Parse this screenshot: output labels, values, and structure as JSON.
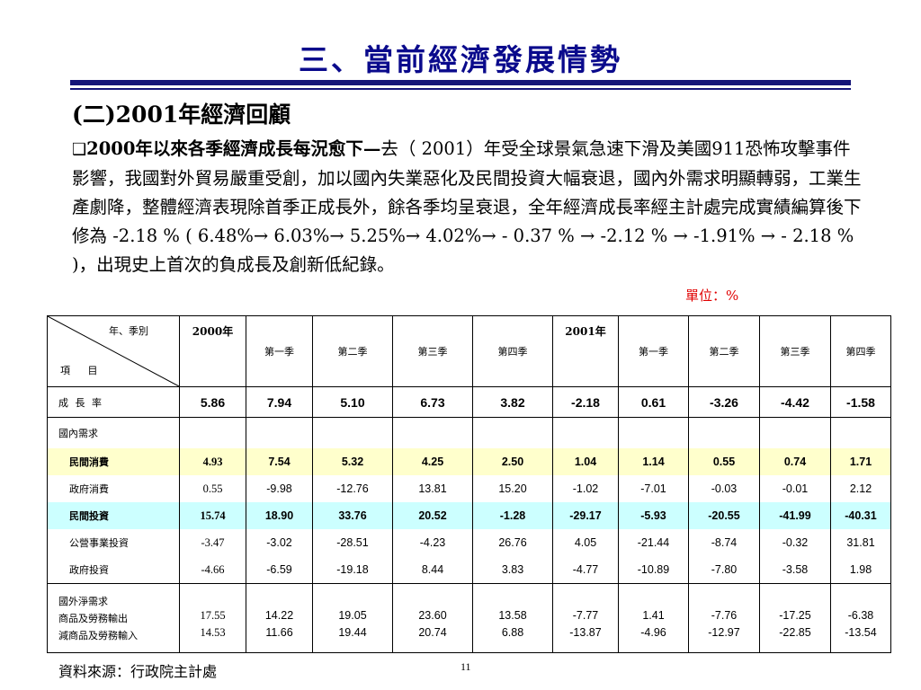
{
  "title": "三、當前經濟發展情勢",
  "subtitle": "(二)2001年經濟回顧",
  "paragraph": {
    "checkbox": "❑",
    "lead": "2000年以來各季經濟成長每況愈下—",
    "body": "去（ 2001）年受全球景氣急速下滑及美國911恐怖攻擊事件影響，我國對外貿易嚴重受創，加以國內失業惡化及民間投資大幅衰退，國內外需求明顯轉弱，工業生產劇降，整體經濟表現除首季正成長外，餘各季均呈衰退，全年經濟成長率經主計處完成實績編算後下修為 -2.18 % ( 6.48%→ 6.03%→ 5.25%→ 4.02%→  - 0.37 % →  -2.12 % → -1.91% → - 2.18 % )，出現史上首次的負成長及創新低紀錄。"
  },
  "unit": "單位：%",
  "table": {
    "corner_top": "年、季別",
    "corner_bottom": "項 目",
    "year_2000": "2000年",
    "year_2001": "2001年",
    "quarters": [
      "第一季",
      "第二季",
      "第三季",
      "第四季"
    ],
    "growth": {
      "label": "成 長 率",
      "values": [
        "5.86",
        "7.94",
        "5.10",
        "6.73",
        "3.82",
        "-2.18",
        "0.61",
        "-3.26",
        "-4.42",
        "-1.58"
      ]
    },
    "domestic_label": "國內需求",
    "rows": [
      {
        "label": "民間消費",
        "values": [
          "4.93",
          "7.54",
          "5.32",
          "4.25",
          "2.50",
          "1.04",
          "1.14",
          "0.55",
          "0.74",
          "1.71"
        ]
      },
      {
        "label": "政府消費",
        "values": [
          "0.55",
          "-9.98",
          "-12.76",
          "13.81",
          "15.20",
          "-1.02",
          "-7.01",
          "-0.03",
          "-0.01",
          "2.12"
        ]
      },
      {
        "label": "民間投資",
        "values": [
          "15.74",
          "18.90",
          "33.76",
          "20.52",
          "-1.28",
          "-29.17",
          "-5.93",
          "-20.55",
          "-41.99",
          "-40.31"
        ]
      },
      {
        "label": "公營事業投資",
        "values": [
          "-3.47",
          "-3.02",
          "-28.51",
          "-4.23",
          "26.76",
          "4.05",
          "-21.44",
          "-8.74",
          "-0.32",
          "31.81"
        ]
      },
      {
        "label": "政府投資",
        "values": [
          "-4.66",
          "-6.59",
          "-19.18",
          "8.44",
          "3.83",
          "-4.77",
          "-10.89",
          "-7.80",
          "-3.58",
          "1.98"
        ]
      }
    ],
    "external": {
      "label": "國外淨需求",
      "export_label": "商品及勞務輸出",
      "import_label": "減商品及勞務輸入",
      "exports": [
        "17.55",
        "14.22",
        "19.05",
        "23.60",
        "13.58",
        "-7.77",
        "1.41",
        "-7.76",
        "-17.25",
        "-6.38"
      ],
      "imports": [
        "14.53",
        "11.66",
        "19.44",
        "20.74",
        "6.88",
        "-13.87",
        "-4.96",
        "-12.97",
        "-22.85",
        "-13.54"
      ]
    }
  },
  "source": "資料來源：行政院主計處",
  "page_number": "11"
}
